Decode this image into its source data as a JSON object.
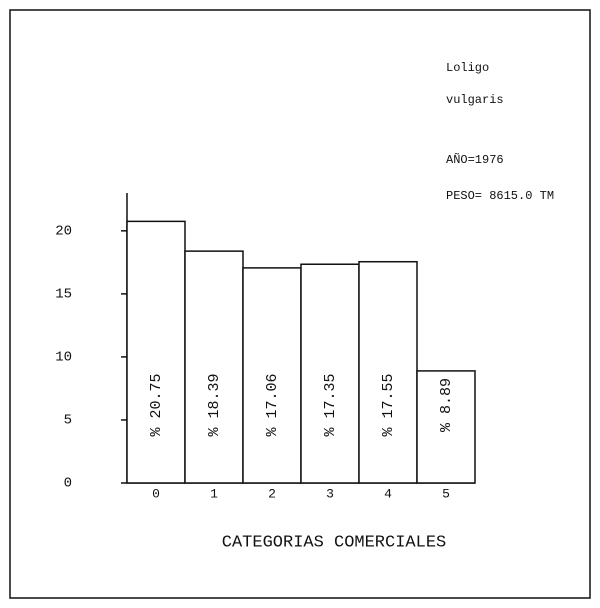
{
  "chart_data": {
    "type": "bar",
    "annotations": [
      "Loligo",
      "vulgaris",
      "AÑO=1976",
      "PESO= 8615.0 TM"
    ],
    "categories": [
      "0",
      "1",
      "2",
      "3",
      "4",
      "5"
    ],
    "values": [
      20.75,
      18.39,
      17.06,
      17.35,
      17.55,
      8.89
    ],
    "value_labels": [
      "% 20.75",
      "% 18.39",
      "% 17.06",
      "% 17.35",
      "% 17.55",
      "% 8.89"
    ],
    "color": "#ffffff",
    "x_label": "CATEGORIAS COMERCIALES",
    "ylim": [
      0,
      23
    ],
    "yticks": [
      0,
      5,
      10,
      15,
      20
    ]
  }
}
